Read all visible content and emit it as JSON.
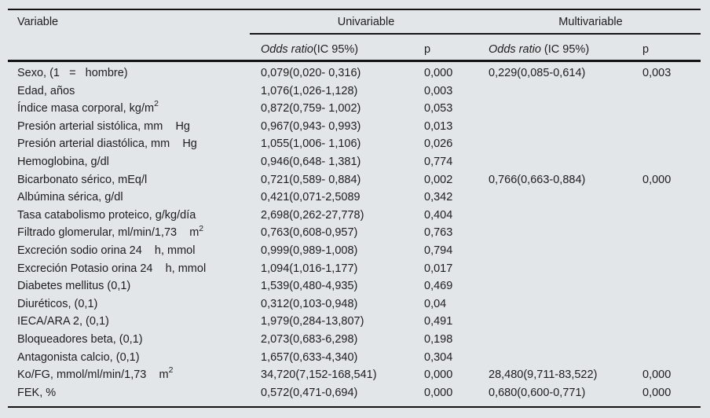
{
  "figure": {
    "kind": "statistical-regression-table"
  },
  "colors": {
    "background": "#e2e6e9",
    "rule": "#141414",
    "text": "#1d1d1d"
  },
  "table": {
    "header": {
      "variable": "Variable",
      "univariable": "Univariable",
      "multivariable": "Multivariable"
    },
    "subheader": {
      "odds_ratio_italic": "Odds ratio",
      "uni_ic": "(IC 95%)",
      "multi_ic": " (IC 95%)",
      "p": "p"
    },
    "rows": [
      {
        "variable": "Sexo, (1   =   hombre)",
        "uni_or": "0,079(0,020- 0,316)",
        "uni_p": "0,000",
        "multi_or": "0,229(0,085-0,614)",
        "multi_p": "0,003"
      },
      {
        "variable": "Edad, años",
        "uni_or": "1,076(1,026-1,128)",
        "uni_p": "0,003",
        "multi_or": "",
        "multi_p": ""
      },
      {
        "variable": "Índice masa corporal, kg/m²",
        "uni_or": "0,872(0,759- 1,002)",
        "uni_p": "0,053",
        "multi_or": "",
        "multi_p": ""
      },
      {
        "variable": "Presión arterial sistólica, mm    Hg",
        "uni_or": "0,967(0,943- 0,993)",
        "uni_p": "0,013",
        "multi_or": "",
        "multi_p": ""
      },
      {
        "variable": "Presión arterial diastólica, mm    Hg",
        "uni_or": "1,055(1,006- 1,106)",
        "uni_p": "0,026",
        "multi_or": "",
        "multi_p": ""
      },
      {
        "variable": "Hemoglobina, g/dl",
        "uni_or": "0,946(0,648- 1,381)",
        "uni_p": "0,774",
        "multi_or": "",
        "multi_p": ""
      },
      {
        "variable": "Bicarbonato sérico, mEq/l",
        "uni_or": "0,721(0,589- 0,884)",
        "uni_p": "0,002",
        "multi_or": "0,766(0,663-0,884)",
        "multi_p": "0,000"
      },
      {
        "variable": "Albúmina sérica, g/dl",
        "uni_or": "0,421(0,071-2,5089",
        "uni_p": "0,342",
        "multi_or": "",
        "multi_p": ""
      },
      {
        "variable": "Tasa catabolismo proteico, g/kg/día",
        "uni_or": "2,698(0,262-27,778)",
        "uni_p": "0,404",
        "multi_or": "",
        "multi_p": ""
      },
      {
        "variable": "Filtrado glomerular, ml/min/1,73    m²",
        "uni_or": "0,763(0,608-0,957)",
        "uni_p": "0,763",
        "multi_or": "",
        "multi_p": ""
      },
      {
        "variable": "Excreción sodio orina 24    h, mmol",
        "uni_or": "0,999(0,989-1,008)",
        "uni_p": "0,794",
        "multi_or": "",
        "multi_p": ""
      },
      {
        "variable": "Excreción Potasio orina 24    h, mmol",
        "uni_or": "1,094(1,016-1,177)",
        "uni_p": "0,017",
        "multi_or": "",
        "multi_p": ""
      },
      {
        "variable": "Diabetes mellitus (0,1)",
        "uni_or": "1,539(0,480-4,935)",
        "uni_p": "0,469",
        "multi_or": "",
        "multi_p": ""
      },
      {
        "variable": "Diuréticos, (0,1)",
        "uni_or": "0,312(0,103-0,948)",
        "uni_p": "0,04",
        "multi_or": "",
        "multi_p": ""
      },
      {
        "variable": "IECA/ARA 2, (0,1)",
        "uni_or": "1,979(0,284-13,807)",
        "uni_p": "0,491",
        "multi_or": "",
        "multi_p": ""
      },
      {
        "variable": "Bloqueadores beta, (0,1)",
        "uni_or": "2,073(0,683-6,298)",
        "uni_p": "0,198",
        "multi_or": "",
        "multi_p": ""
      },
      {
        "variable": "Antagonista calcio, (0,1)",
        "uni_or": "1,657(0,633-4,340)",
        "uni_p": "0,304",
        "multi_or": "",
        "multi_p": ""
      },
      {
        "variable": "Ko/FG, mmol/ml/min/1,73    m²",
        "uni_or": "34,720(7,152-168,541)",
        "uni_p": "0,000",
        "multi_or": "28,480(9,711-83,522)",
        "multi_p": "0,000"
      },
      {
        "variable": "FEK, %",
        "uni_or": "0,572(0,471-0,694)",
        "uni_p": "0,000",
        "multi_or": "0,680(0,600-0,771)",
        "multi_p": "0,000"
      }
    ]
  }
}
